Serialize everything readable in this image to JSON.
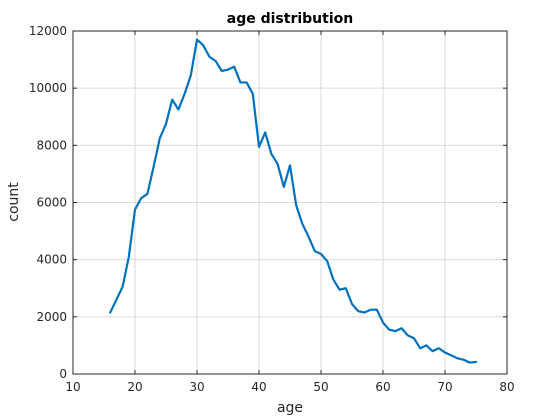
{
  "chart_data": {
    "type": "line",
    "title": "age distribution",
    "xlabel": "age",
    "ylabel": "count",
    "xlim": [
      10,
      80
    ],
    "ylim": [
      0,
      12000
    ],
    "xticks": [
      10,
      20,
      30,
      40,
      50,
      60,
      70,
      80
    ],
    "yticks": [
      0,
      2000,
      4000,
      6000,
      8000,
      10000,
      12000
    ],
    "grid": true,
    "line_color": "#0072BD",
    "series": [
      {
        "x": [
          16,
          17,
          18,
          19,
          20,
          21,
          22,
          23,
          24,
          25,
          26,
          27,
          28,
          29,
          30,
          31,
          32,
          33,
          34,
          35,
          36,
          37,
          38,
          39,
          40,
          41,
          42,
          43,
          44,
          45,
          46,
          47,
          48,
          49,
          50,
          51,
          52,
          53,
          54,
          55,
          56,
          57,
          58,
          59,
          60,
          61,
          62,
          63,
          64,
          65,
          66,
          67,
          68,
          69,
          70,
          71,
          72,
          73,
          74,
          75
        ],
        "values": [
          2150,
          2600,
          3050,
          4100,
          5750,
          6150,
          6300,
          7250,
          8250,
          8750,
          9600,
          9250,
          9800,
          10450,
          11700,
          11500,
          11100,
          10950,
          10600,
          10650,
          10750,
          10200,
          10200,
          9800,
          7950,
          8450,
          7700,
          7350,
          6550,
          7300,
          5900,
          5250,
          4800,
          4300,
          4200,
          3950,
          3300,
          2950,
          3000,
          2450,
          2200,
          2150,
          2250,
          2250,
          1800,
          1550,
          1500,
          1600,
          1350,
          1250,
          900,
          1000,
          800,
          900,
          750,
          650,
          550,
          500,
          400,
          420
        ]
      }
    ]
  }
}
